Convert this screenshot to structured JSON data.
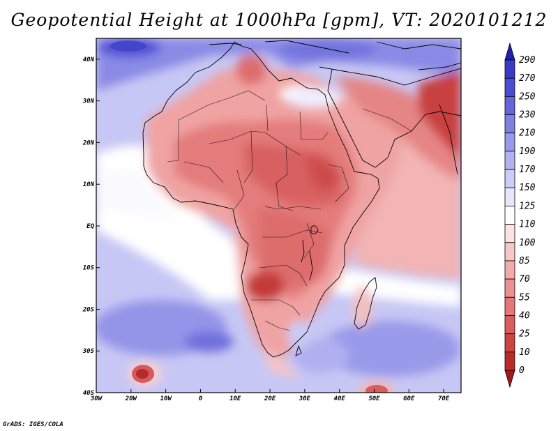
{
  "title": "Geopotential Height at 1000hPa [gpm], VT: 2020101212",
  "credit": "GrADS: IGES/COLA",
  "map_data": {
    "variable": "Geopotential Height",
    "level": "1000hPa",
    "units": "gpm",
    "valid_time": "2020101212",
    "lon_range": [
      -30,
      75
    ],
    "lat_range": [
      -40,
      45
    ],
    "lon_ticks": [
      {
        "value": -30,
        "label": "30W"
      },
      {
        "value": -20,
        "label": "20W"
      },
      {
        "value": -10,
        "label": "10W"
      },
      {
        "value": 0,
        "label": "0"
      },
      {
        "value": 10,
        "label": "10E"
      },
      {
        "value": 20,
        "label": "20E"
      },
      {
        "value": 30,
        "label": "30E"
      },
      {
        "value": 40,
        "label": "40E"
      },
      {
        "value": 50,
        "label": "50E"
      },
      {
        "value": 60,
        "label": "60E"
      },
      {
        "value": 70,
        "label": "70E"
      }
    ],
    "lat_ticks": [
      {
        "value": 40,
        "label": "40N"
      },
      {
        "value": 30,
        "label": "30N"
      },
      {
        "value": 20,
        "label": "20N"
      },
      {
        "value": 10,
        "label": "10N"
      },
      {
        "value": 0,
        "label": "EQ"
      },
      {
        "value": -10,
        "label": "10S"
      },
      {
        "value": -20,
        "label": "20S"
      },
      {
        "value": -30,
        "label": "30S"
      },
      {
        "value": -40,
        "label": "40S"
      }
    ],
    "colorbar": {
      "levels": [
        0,
        10,
        25,
        40,
        55,
        70,
        85,
        100,
        110,
        125,
        150,
        170,
        190,
        210,
        230,
        250,
        270,
        290
      ],
      "colors": [
        "#a01818",
        "#bb2b2b",
        "#cd4444",
        "#da5d5d",
        "#e47777",
        "#ec9191",
        "#f2abab",
        "#f7c6c6",
        "#fce3e3",
        "#ffffff",
        "#e6e6fd",
        "#ccccf8",
        "#b2b2f1",
        "#9999ea",
        "#8080e3",
        "#6666db",
        "#4d4dd2",
        "#3a3ac6",
        "#2020b0"
      ],
      "under_color": "#a01818",
      "over_color": "#2020b0"
    }
  }
}
